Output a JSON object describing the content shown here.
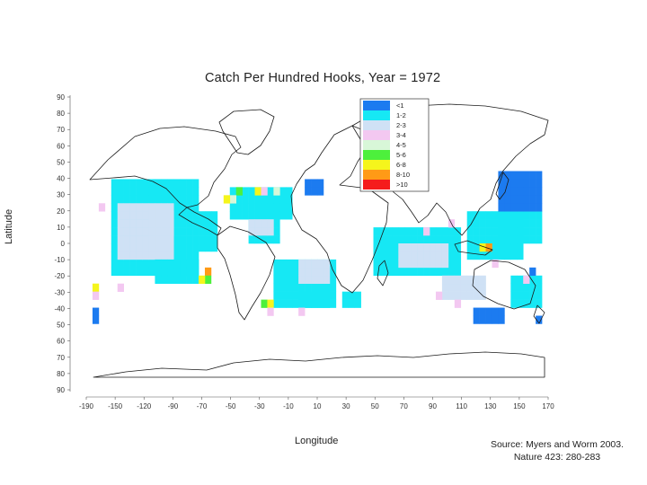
{
  "chart_data": {
    "type": "heatmap",
    "title": "Catch Per Hundred Hooks, Year = 1972",
    "xlabel": "Longitude",
    "ylabel": "Latitude",
    "xlim": [
      -190,
      180
    ],
    "ylim": [
      -90,
      90
    ],
    "yticks": [
      "90",
      "80",
      "70",
      "60",
      "50",
      "40",
      "30",
      "20",
      "10",
      "0",
      "-10",
      "-20",
      "-30",
      "-40",
      "50",
      "60",
      "70",
      "80",
      "90"
    ],
    "xticks": [
      -190,
      -150,
      -120,
      -90,
      -70,
      -50,
      -30,
      -10,
      10,
      30,
      50,
      70,
      90,
      110,
      130,
      150,
      170
    ],
    "cell_size_deg": 5,
    "legend": {
      "position": "top-center",
      "classes": [
        {
          "label": "<1",
          "color": "#1c7bf0"
        },
        {
          "label": "1-2",
          "color": "#16e8f4"
        },
        {
          "label": "2-3",
          "color": "#cfe1f5"
        },
        {
          "label": "3-4",
          "color": "#f3c8f1"
        },
        {
          "label": "4-5",
          "color": "#d8f7d8"
        },
        {
          "label": "5-6",
          "color": "#4df03c"
        },
        {
          "label": "6-8",
          "color": "#f5f51c"
        },
        {
          "label": "8-10",
          "color": "#ff9a16"
        },
        {
          "label": ">10",
          "color": "#f51c1c"
        }
      ]
    },
    "regions": [
      {
        "lon": [
          -170,
          -100
        ],
        "lat": [
          -20,
          40
        ],
        "class": 1
      },
      {
        "lon": [
          -165,
          -120
        ],
        "lat": [
          -10,
          25
        ],
        "class": 2
      },
      {
        "lon": [
          -135,
          -100
        ],
        "lat": [
          -25,
          -10
        ],
        "class": 1
      },
      {
        "lon": [
          -140,
          -120
        ],
        "lat": [
          5,
          20
        ],
        "class": 2
      },
      {
        "lon": [
          -100,
          -85
        ],
        "lat": [
          -5,
          20
        ],
        "class": 1
      },
      {
        "lon": [
          -75,
          -25
        ],
        "lat": [
          15,
          35
        ],
        "class": 1
      },
      {
        "lon": [
          -60,
          -35
        ],
        "lat": [
          0,
          15
        ],
        "class": 1
      },
      {
        "lon": [
          -60,
          -40
        ],
        "lat": [
          5,
          15
        ],
        "class": 2
      },
      {
        "lon": [
          -40,
          10
        ],
        "lat": [
          -40,
          -10
        ],
        "class": 1
      },
      {
        "lon": [
          -20,
          5
        ],
        "lat": [
          -25,
          -10
        ],
        "class": 2
      },
      {
        "lon": [
          -20,
          5
        ],
        "lat": [
          -40,
          -30
        ],
        "class": 1
      },
      {
        "lon": [
          -15,
          0
        ],
        "lat": [
          30,
          40
        ],
        "class": 0
      },
      {
        "lon": [
          40,
          110
        ],
        "lat": [
          -20,
          10
        ],
        "class": 1
      },
      {
        "lon": [
          60,
          100
        ],
        "lat": [
          -15,
          0
        ],
        "class": 2
      },
      {
        "lon": [
          115,
          160
        ],
        "lat": [
          -10,
          20
        ],
        "class": 1
      },
      {
        "lon": [
          140,
          175
        ],
        "lat": [
          0,
          20
        ],
        "class": 1
      },
      {
        "lon": [
          140,
          175
        ],
        "lat": [
          20,
          45
        ],
        "class": 0
      },
      {
        "lon": [
          120,
          145
        ],
        "lat": [
          -50,
          -40
        ],
        "class": 0
      },
      {
        "lon": [
          150,
          175
        ],
        "lat": [
          -40,
          -20
        ],
        "class": 1
      },
      {
        "lon": [
          -185,
          -180
        ],
        "lat": [
          -50,
          -40
        ],
        "class": 0
      },
      {
        "lon": [
          95,
          130
        ],
        "lat": [
          -35,
          -20
        ],
        "class": 2
      },
      {
        "lon": [
          15,
          30
        ],
        "lat": [
          -40,
          -30
        ],
        "class": 1
      }
    ],
    "cells": [
      {
        "lon": -70,
        "lat": 30,
        "class": 5
      },
      {
        "lon": -75,
        "lat": 25,
        "class": 4
      },
      {
        "lon": -80,
        "lat": 25,
        "class": 6
      },
      {
        "lon": -55,
        "lat": 30,
        "class": 6
      },
      {
        "lon": -50,
        "lat": 30,
        "class": 3
      },
      {
        "lon": -40,
        "lat": 30,
        "class": 4
      },
      {
        "lon": -95,
        "lat": -20,
        "class": 7
      },
      {
        "lon": -95,
        "lat": -25,
        "class": 5
      },
      {
        "lon": -100,
        "lat": -25,
        "class": 6
      },
      {
        "lon": -50,
        "lat": -40,
        "class": 5
      },
      {
        "lon": -45,
        "lat": -40,
        "class": 6
      },
      {
        "lon": -45,
        "lat": -45,
        "class": 3
      },
      {
        "lon": -20,
        "lat": -45,
        "class": 3
      },
      {
        "lon": -185,
        "lat": -30,
        "class": 6
      },
      {
        "lon": -185,
        "lat": -35,
        "class": 3
      },
      {
        "lon": -165,
        "lat": -30,
        "class": 3
      },
      {
        "lon": -180,
        "lat": 20,
        "class": 3
      },
      {
        "lon": 125,
        "lat": -5,
        "class": 6
      },
      {
        "lon": 130,
        "lat": -5,
        "class": 7
      },
      {
        "lon": 90,
        "lat": -35,
        "class": 3
      },
      {
        "lon": 105,
        "lat": -40,
        "class": 3
      },
      {
        "lon": 135,
        "lat": -15,
        "class": 3
      },
      {
        "lon": 160,
        "lat": -25,
        "class": 3
      },
      {
        "lon": 165,
        "lat": -20,
        "class": 0
      },
      {
        "lon": 170,
        "lat": -50,
        "class": 0
      },
      {
        "lon": 100,
        "lat": 10,
        "class": 3
      },
      {
        "lon": 80,
        "lat": 5,
        "class": 3
      }
    ]
  },
  "source": {
    "line1": "Source: Myers and Worm 2003.",
    "line2": "Nature 423: 280-283"
  }
}
